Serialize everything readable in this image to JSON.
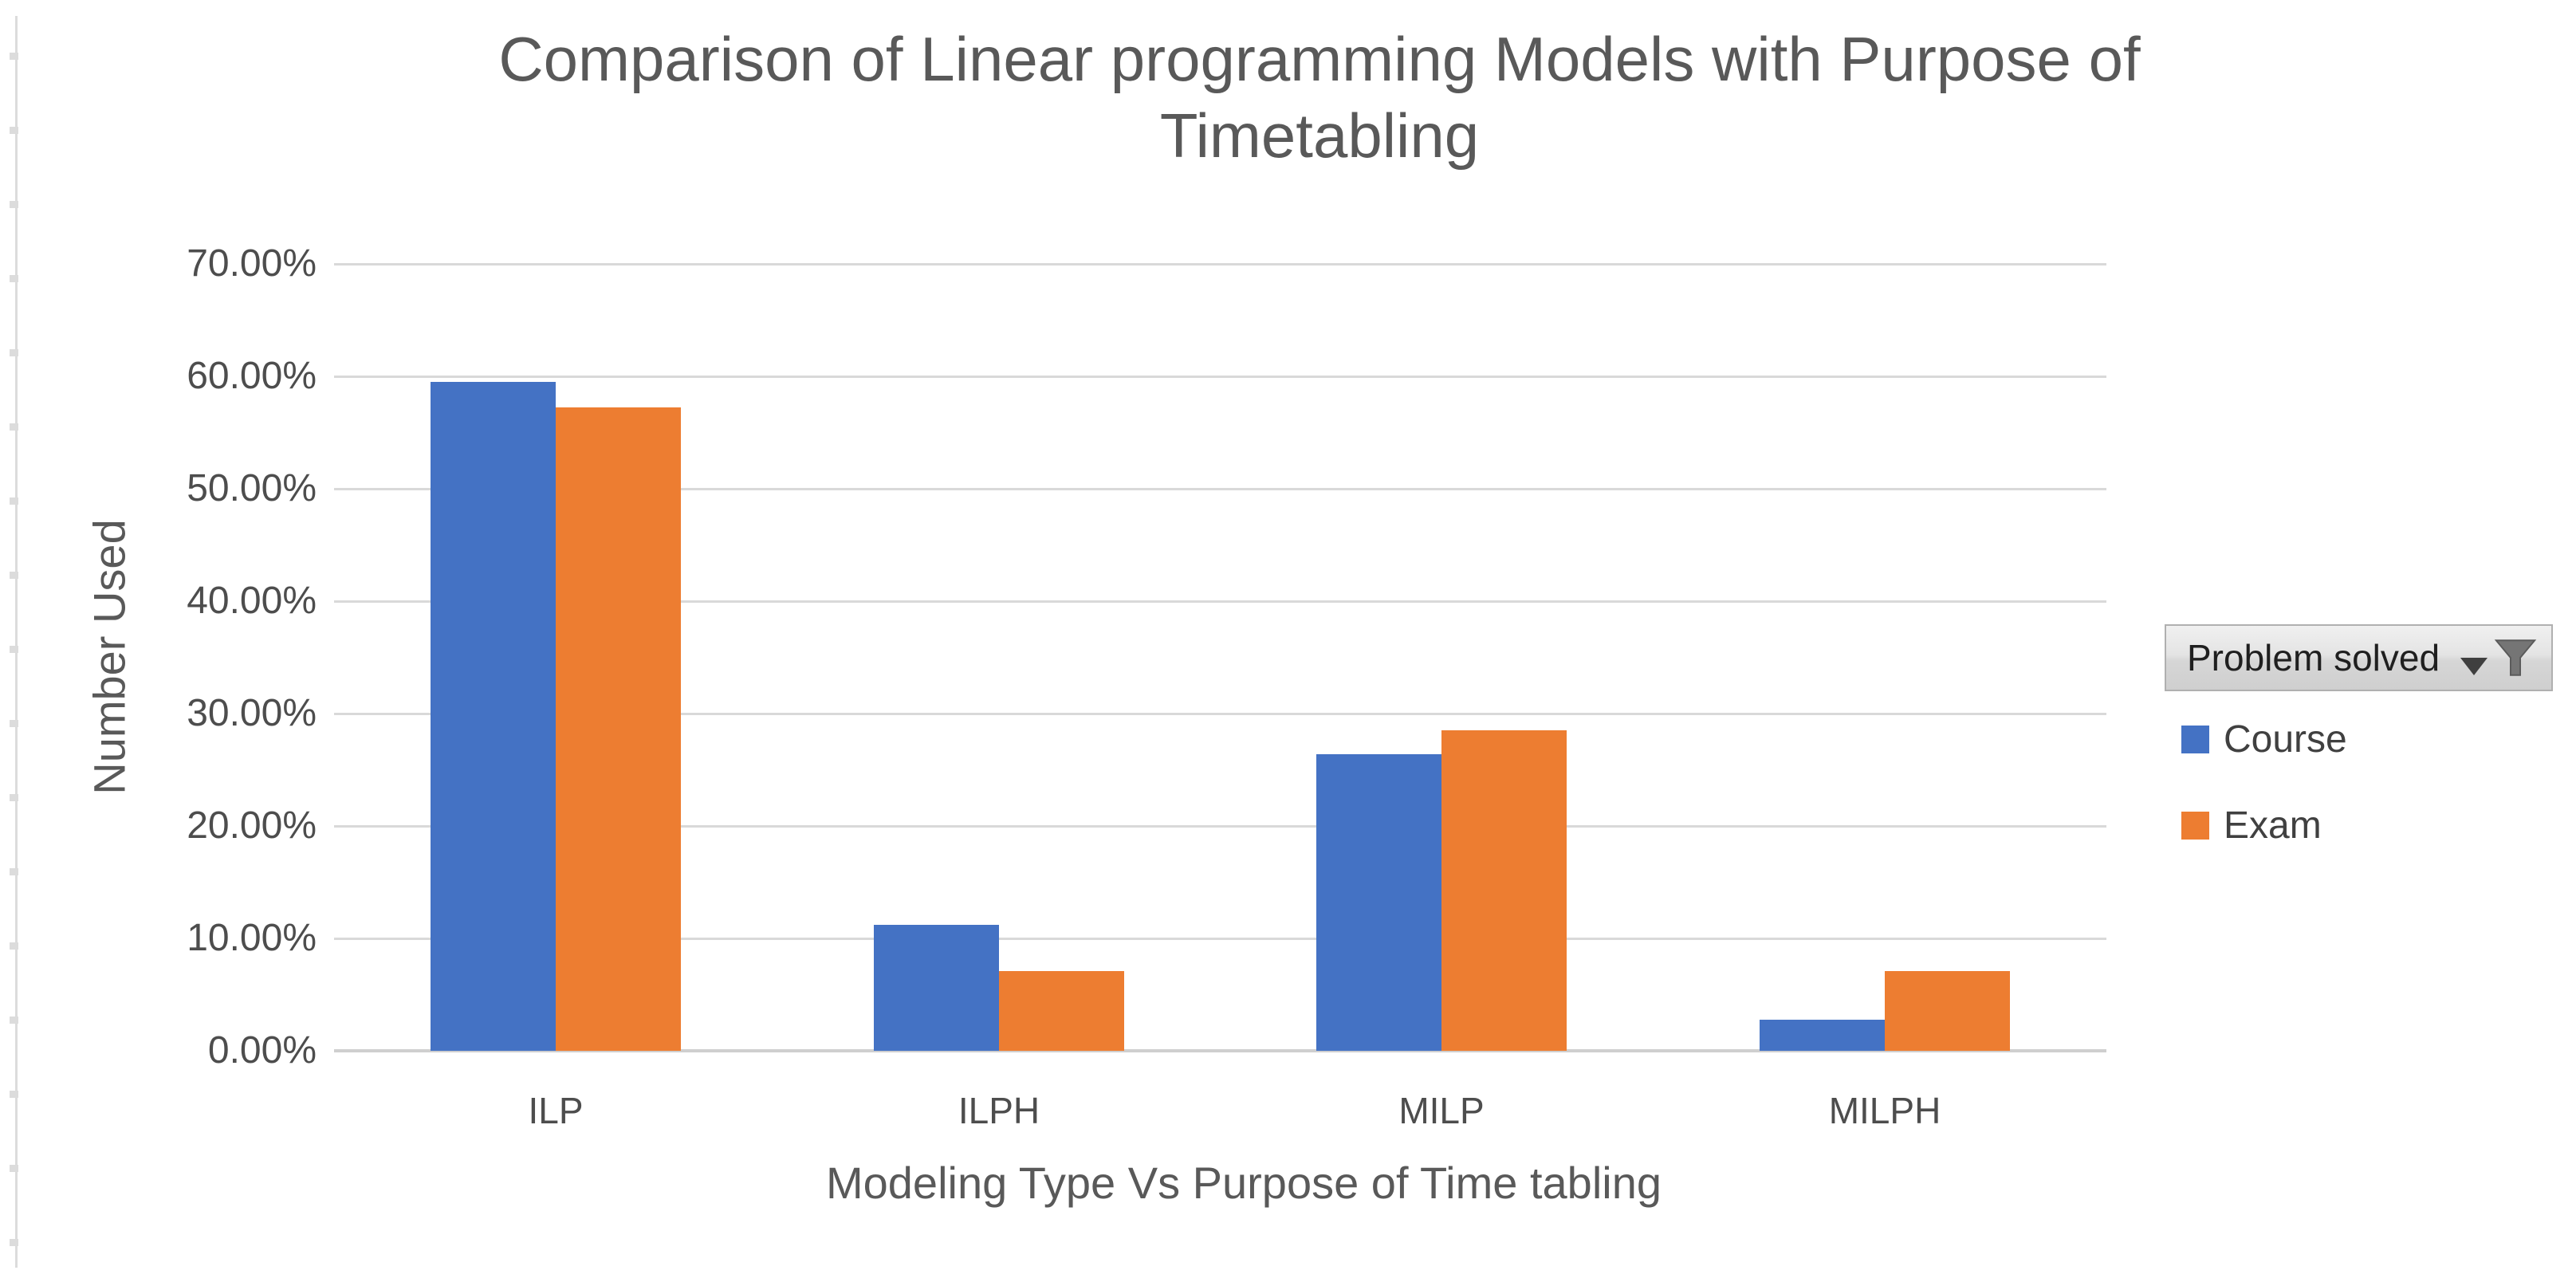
{
  "chart_data": {
    "type": "bar",
    "title": "Comparison of Linear programming Models with Purpose of Timetabling",
    "title_lines": [
      "Comparison of Linear programming Models with Purpose of",
      "Timetabling"
    ],
    "categories": [
      "ILP",
      "ILPH",
      "MILP",
      "MILPH"
    ],
    "series": [
      {
        "name": "Course",
        "color": "#4472C4",
        "values": [
          59.5,
          11.2,
          26.4,
          2.8
        ]
      },
      {
        "name": "Exam",
        "color": "#ED7D31",
        "values": [
          57.2,
          7.1,
          28.5,
          7.1
        ]
      }
    ],
    "xlabel": "Modeling Type Vs Purpose of Time tabling",
    "ylabel": "Number Used",
    "ylim": [
      0,
      70
    ],
    "y_tick_step": 10,
    "y_ticks": [
      "0.00%",
      "10.00%",
      "20.00%",
      "30.00%",
      "40.00%",
      "50.00%",
      "60.00%",
      "70.00%"
    ],
    "grid": true,
    "legend_position": "right",
    "gridline_color": "#d9d9d9"
  },
  "filter_button": {
    "label": "Problem solved",
    "icons": [
      "dropdown-arrow-icon",
      "funnel-icon"
    ]
  },
  "legend": {
    "items": [
      {
        "label": "Course",
        "color": "#4472C4"
      },
      {
        "label": "Exam",
        "color": "#ED7D31"
      }
    ]
  }
}
